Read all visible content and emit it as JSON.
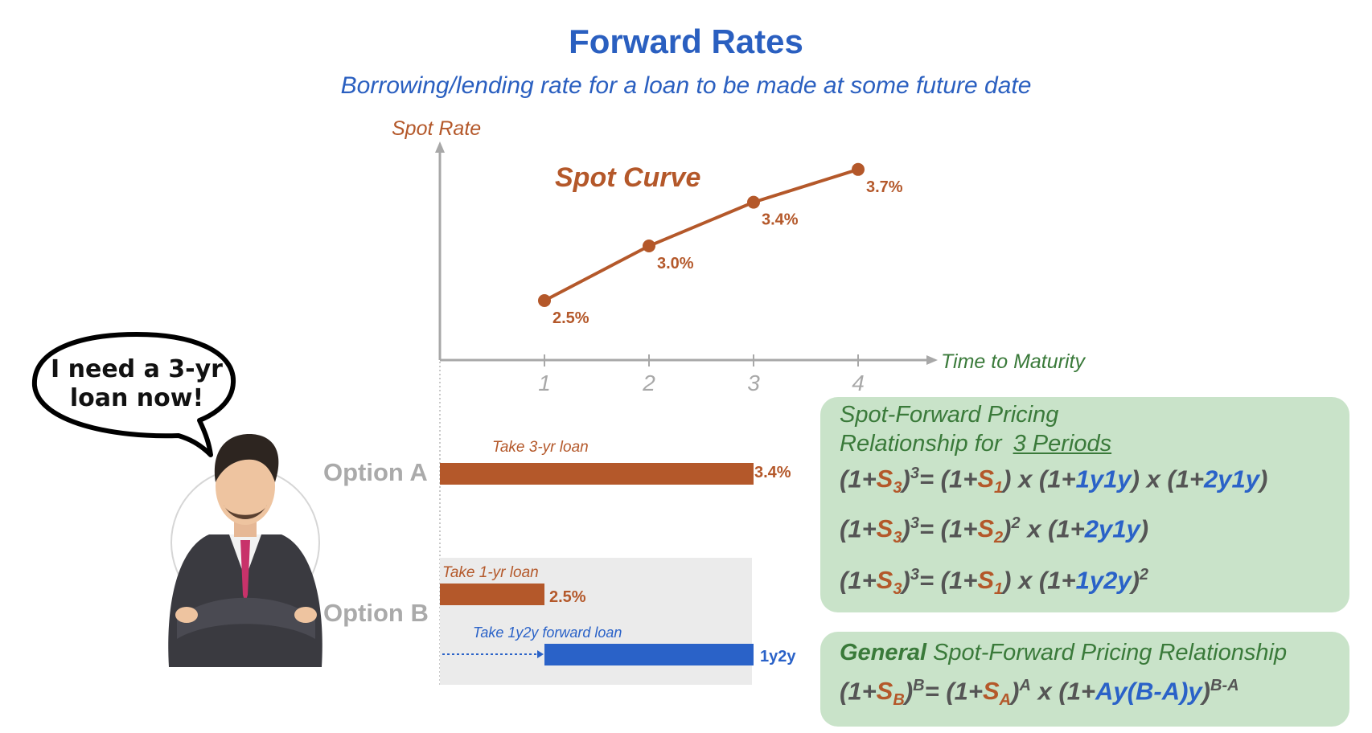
{
  "header": {
    "title": "Forward Rates",
    "subtitle": "Borrowing/lending rate for a loan to be made at some future date"
  },
  "chart_data": {
    "type": "line",
    "title": "Spot Curve",
    "xlabel": "Time to Maturity",
    "ylabel": "Spot Rate",
    "x": [
      1,
      2,
      3,
      4
    ],
    "tick_labels": [
      "1",
      "2",
      "3",
      "4"
    ],
    "series": [
      {
        "values": [
          2.5,
          3.0,
          3.4,
          3.7
        ],
        "labels": [
          "2.5%",
          "3.0%",
          "3.4%",
          "3.7%"
        ]
      }
    ],
    "xlim": [
      0,
      4.6
    ],
    "grid": false,
    "colors": {
      "line": "#b4582a",
      "axis": "#a8a8a8",
      "xlabel": "#3a7a3a"
    }
  },
  "bubble": {
    "text": "I need a 3-yr loan now!"
  },
  "options": {
    "a": {
      "label": "Option A",
      "bar_note": "Take 3-yr loan",
      "value": "3.4%",
      "start_year": 0,
      "end_year": 3
    },
    "b": {
      "label": "Option B",
      "loan1_note": "Take 1-yr loan",
      "loan1_value": "2.5%",
      "loan1_start": 0,
      "loan1_end": 1,
      "loan2_note": "Take 1y2y forward loan",
      "loan2_value": "1y2y",
      "loan2_start": 1,
      "loan2_end": 3
    }
  },
  "box1": {
    "head1": "Spot-Forward Pricing",
    "head2_prefix": "Relationship for",
    "head2_link": "3 Periods",
    "eq1": {
      "p1": "(1+",
      "s": "S",
      "n": "3",
      "p2": ")",
      "exp": "3",
      "eqsign": "= ",
      "p3": "(1+",
      "s2": "S",
      "n2": "1",
      "p4": ") x (1+",
      "f1": "1y1y",
      "p5": ") x (1+",
      "f2": "2y1y",
      "p6": ")"
    },
    "eq2": {
      "p1": "(1+",
      "s": "S",
      "n": "3",
      "p2": ")",
      "exp": "3",
      "eqsign": "= ",
      "p3": "(1+",
      "s2": "S",
      "n2": "2",
      "p4": ")",
      "exp2": "2",
      "p5": " x (1+",
      "f1": "2y1y",
      "p6": ")"
    },
    "eq3": {
      "p1": "(1+",
      "s": "S",
      "n": "3",
      "p2": ")",
      "exp": "3",
      "eqsign": "= ",
      "p3": "(1+",
      "s2": "S",
      "n2": "1",
      "p4": ") x (1+",
      "f1": "1y2y",
      "p5": ")",
      "exp2": "2"
    }
  },
  "box2": {
    "head_bold": "General",
    "head_rest": " Spot-Forward Pricing Relationship",
    "eq": {
      "p1": "(1+",
      "s": "S",
      "n": "B",
      "p2": ")",
      "exp": "B",
      "eqsign": "= ",
      "p3": "(1+",
      "s2": "S",
      "n2": "A",
      "p4": ")",
      "exp2": "A",
      "p5": " x (1+",
      "f1": "Ay(B-A)y",
      "p6": ")",
      "exp3": "B-A"
    }
  },
  "colors": {
    "title": "#2a5fc0",
    "orange": "#b4582a",
    "blue": "#2a62c8",
    "green_box": "#c9e3c9",
    "option_gray": "#aaaaaa"
  }
}
